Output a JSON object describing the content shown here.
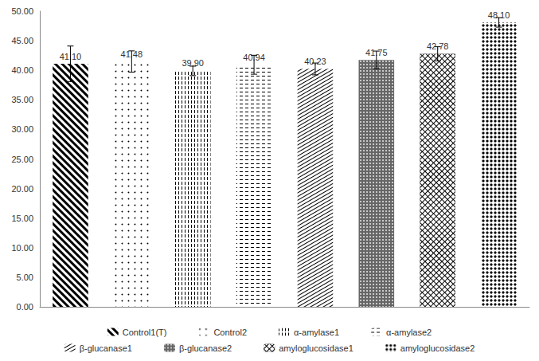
{
  "chart_data": {
    "type": "bar",
    "categories": [
      "Control1(T)",
      "Control2",
      "α-amylase1",
      "α-amylase2",
      "β-glucanase1",
      "β-glucanase2",
      "amyloglucosidase1",
      "amyloglucosidase2"
    ],
    "values": [
      41.1,
      41.48,
      39.9,
      40.94,
      40.23,
      41.75,
      42.78,
      48.1
    ],
    "value_labels": [
      "41.10",
      "41.48",
      "39.90",
      "40.94",
      "40.23",
      "41.75",
      "42.78",
      "48.10"
    ],
    "errors": [
      3.0,
      1.8,
      0.8,
      1.6,
      1.0,
      1.5,
      1.2,
      0.8
    ],
    "color": "#000000",
    "ylim": [
      0,
      50
    ],
    "yticks": [
      {
        "value": 0,
        "label": "0.00"
      },
      {
        "value": 5,
        "label": "5.00"
      },
      {
        "value": 10,
        "label": "10.00"
      },
      {
        "value": 15,
        "label": "15.00"
      },
      {
        "value": 20,
        "label": "20.00"
      },
      {
        "value": 25,
        "label": "25.00"
      },
      {
        "value": 30,
        "label": "30.00"
      },
      {
        "value": 35,
        "label": "35.00"
      },
      {
        "value": 40,
        "label": "40.00"
      },
      {
        "value": 45,
        "label": "45.00"
      },
      {
        "value": 50,
        "label": "50.00"
      }
    ],
    "grid": false,
    "legend": "bottom",
    "data_labels": true,
    "tick_labels": "y"
  }
}
